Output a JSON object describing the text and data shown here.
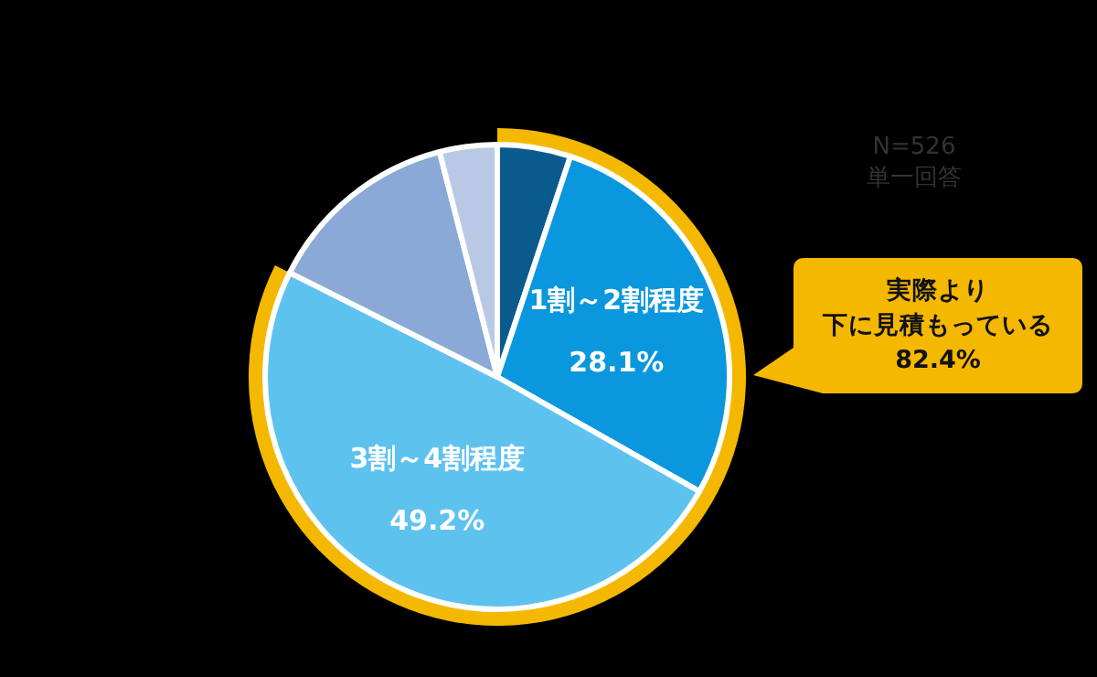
{
  "chart_data": {
    "type": "pie",
    "categories": [
      null,
      "1割～2割程度",
      "3割～4割程度",
      null,
      null
    ],
    "values": [
      5.1,
      28.1,
      49.2,
      13.6,
      4.0
    ],
    "colors": [
      "#0b5a8e",
      "#0a97dd",
      "#5ec2ef",
      "#8ba9d6",
      "#b9c9e5"
    ],
    "value_labels": [
      null,
      "28.1%",
      "49.2%",
      null,
      null
    ],
    "legend": false,
    "annotations": [
      "N=526",
      "単一回答",
      "実際より",
      "下に見積もっている",
      "82.4%"
    ]
  }
}
